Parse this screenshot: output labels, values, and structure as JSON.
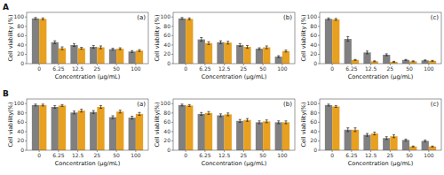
{
  "chart_data": [
    {
      "type": "bar",
      "title": "(a)",
      "annotations": [
        "A"
      ],
      "x_label": "Concentration (μg/mL)",
      "y_label": "Cell viability (%)",
      "categories": [
        "0",
        "6.25",
        "12.5",
        "25",
        "50",
        "100"
      ],
      "ylim": [
        0,
        110
      ],
      "yticks": [
        0,
        20,
        40,
        60,
        80,
        100
      ],
      "grid": false,
      "series": [
        {
          "color": "#808080",
          "values": [
            97,
            46,
            40,
            36,
            31,
            26
          ],
          "errors": [
            2,
            3,
            3,
            3,
            2,
            2
          ]
        },
        {
          "color": "#E8A020",
          "values": [
            96,
            33,
            33,
            35,
            32,
            28
          ],
          "errors": [
            2,
            3,
            2,
            3,
            2,
            2
          ]
        }
      ]
    },
    {
      "type": "bar",
      "title": "(b)",
      "x_label": "Concentration (μg/mL)",
      "y_label": "Cell viability (%)",
      "categories": [
        "0",
        "6.25",
        "12.5",
        "25",
        "50",
        "100"
      ],
      "ylim": [
        0,
        110
      ],
      "yticks": [
        0,
        20,
        40,
        60,
        80,
        100
      ],
      "grid": false,
      "series": [
        {
          "color": "#808080",
          "values": [
            97,
            52,
            46,
            40,
            32,
            15
          ],
          "errors": [
            2,
            4,
            3,
            3,
            2,
            2
          ]
        },
        {
          "color": "#E8A020",
          "values": [
            96,
            44,
            45,
            36,
            35,
            27
          ],
          "errors": [
            2,
            3,
            3,
            3,
            3,
            2
          ]
        }
      ]
    },
    {
      "type": "bar",
      "title": "(c)",
      "x_label": "Concentration (μg/mL)",
      "y_label": "Cell viability (%)",
      "categories": [
        "0",
        "6.25",
        "12.5",
        "25",
        "50",
        "100"
      ],
      "ylim": [
        0,
        110
      ],
      "yticks": [
        0,
        20,
        40,
        60,
        80,
        100
      ],
      "grid": false,
      "series": [
        {
          "color": "#808080",
          "values": [
            96,
            53,
            24,
            19,
            8,
            7
          ],
          "errors": [
            2,
            5,
            3,
            2,
            1,
            1
          ]
        },
        {
          "color": "#E8A020",
          "values": [
            95,
            8,
            5,
            4,
            5,
            6
          ],
          "errors": [
            2,
            1,
            1,
            1,
            1,
            1
          ]
        }
      ]
    },
    {
      "type": "bar",
      "title": "(a)",
      "annotations": [
        "B"
      ],
      "x_label": "Concentration (μg/mL)",
      "y_label": "Cell viability(%)",
      "categories": [
        "0",
        "6.25",
        "12.5",
        "25",
        "50",
        "100"
      ],
      "ylim": [
        0,
        110
      ],
      "yticks": [
        0,
        20,
        40,
        60,
        80,
        100
      ],
      "grid": false,
      "series": [
        {
          "color": "#808080",
          "values": [
            97,
            93,
            81,
            82,
            71,
            70
          ],
          "errors": [
            2,
            3,
            3,
            3,
            3,
            3
          ]
        },
        {
          "color": "#E8A020",
          "values": [
            97,
            96,
            85,
            93,
            83,
            78
          ],
          "errors": [
            2,
            2,
            3,
            3,
            3,
            3
          ]
        }
      ]
    },
    {
      "type": "bar",
      "title": "(b)",
      "x_label": "Concentration (μg/mL)",
      "y_label": "Cell viability(%)",
      "categories": [
        "0",
        "6.25",
        "12.5",
        "25",
        "50",
        "100"
      ],
      "ylim": [
        0,
        110
      ],
      "yticks": [
        0,
        20,
        40,
        60,
        80,
        100
      ],
      "grid": false,
      "series": [
        {
          "color": "#808080",
          "values": [
            97,
            78,
            75,
            63,
            60,
            60
          ],
          "errors": [
            2,
            3,
            3,
            3,
            3,
            3
          ]
        },
        {
          "color": "#E8A020",
          "values": [
            96,
            80,
            77,
            65,
            62,
            60
          ],
          "errors": [
            2,
            3,
            3,
            3,
            3,
            3
          ]
        }
      ]
    },
    {
      "type": "bar",
      "title": "(c)",
      "x_label": "Concentration (μg/mL)",
      "y_label": "Cell viability(%)",
      "categories": [
        "0",
        "6.25",
        "12.5",
        "25",
        "50",
        "100"
      ],
      "ylim": [
        0,
        110
      ],
      "yticks": [
        0,
        20,
        40,
        60,
        80,
        100
      ],
      "grid": false,
      "series": [
        {
          "color": "#808080",
          "values": [
            97,
            44,
            33,
            26,
            22,
            20
          ],
          "errors": [
            2,
            4,
            3,
            3,
            2,
            2
          ]
        },
        {
          "color": "#E8A020",
          "values": [
            94,
            44,
            36,
            30,
            8,
            8
          ],
          "errors": [
            2,
            4,
            3,
            3,
            1,
            1
          ]
        }
      ]
    }
  ]
}
